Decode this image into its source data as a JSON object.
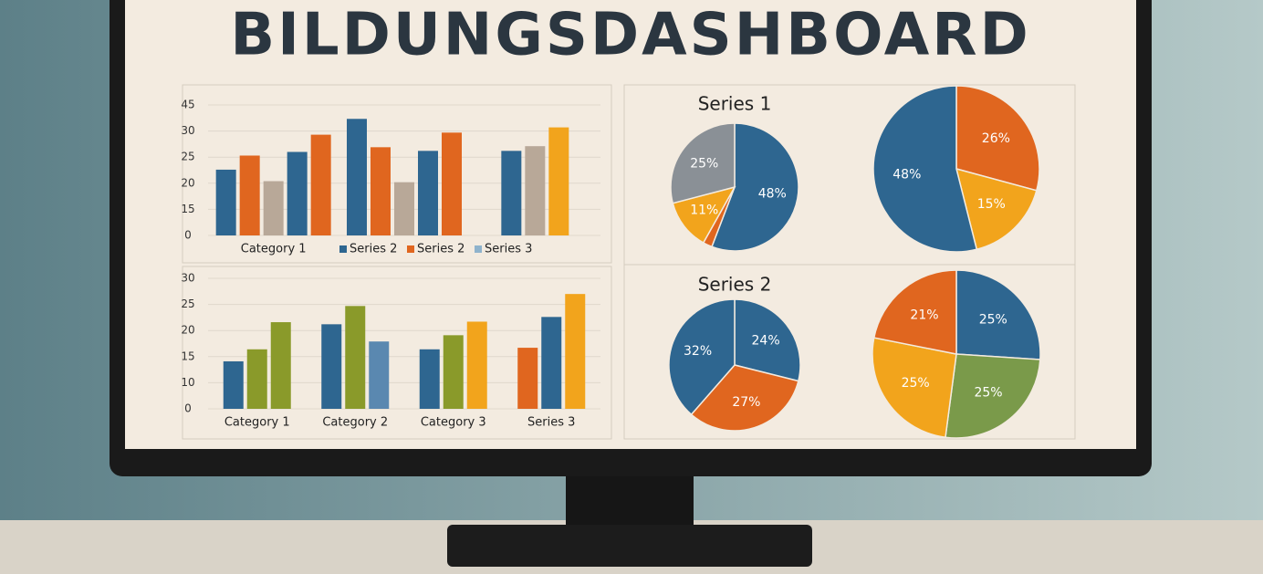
{
  "title": "BILDUNGSDASHBOARD",
  "chart_data": [
    {
      "type": "bar",
      "categories": [
        "Category 1",
        null,
        null
      ],
      "ylim": [
        0,
        45
      ],
      "yticks": [
        0,
        15,
        20,
        25,
        30,
        45
      ],
      "grid": true,
      "series": [
        {
          "name": "Series 2",
          "color": "#2e6690",
          "values": [
            22.6,
            37,
            26.2
          ]
        },
        {
          "name": "Series 2",
          "color": "#e0661f",
          "values": [
            25.3,
            26.9,
            null
          ]
        },
        {
          "color": "#b8a898",
          "values": [
            20.4,
            20.2,
            27.1
          ]
        },
        {
          "color": "#2e6690",
          "values": [
            26,
            26.2,
            null
          ]
        },
        {
          "color": "#e0661f",
          "colors": [
            "#e0661f",
            "#e0661f",
            "#f2a41c"
          ],
          "values": [
            29.3,
            29.7,
            32.1
          ]
        },
        {
          "name": "Series 3",
          "color": "#8fb3cc",
          "values": [
            null,
            null,
            null
          ]
        }
      ]
    },
    {
      "type": "bar",
      "categories": [
        "Category 1",
        "Category 2",
        "Category 3",
        "Series 3"
      ],
      "ylim": [
        0,
        30
      ],
      "yticks": [
        0,
        10,
        15,
        20,
        25,
        30
      ],
      "grid": true,
      "series": [
        {
          "colors": [
            "#2e6690",
            "#2e6690",
            "#2e6690",
            "#e0661f"
          ],
          "values": [
            14.1,
            21.2,
            16.4,
            16.7
          ]
        },
        {
          "colors": [
            "#8a9a2a",
            "#8a9a2a",
            "#8a9a2a",
            "#2e6690"
          ],
          "values": [
            16.4,
            24.7,
            19.1,
            22.6
          ]
        },
        {
          "colors": [
            "#8a9a2a",
            "#5a88b0",
            "#f2a41c",
            "#f2a41c"
          ],
          "values": [
            21.6,
            17.9,
            21.7,
            27.0
          ]
        }
      ]
    },
    {
      "type": "pie",
      "title": "Series 1",
      "values": [
        48,
        2,
        11,
        25
      ],
      "value_labels": [
        "48%",
        null,
        "11%",
        "25%"
      ],
      "colors": [
        "#2e6690",
        "#e0661f",
        "#f2a41c",
        "#8a9096"
      ]
    },
    {
      "type": "pie",
      "values": [
        26,
        15,
        48
      ],
      "value_labels": [
        "26%",
        "15%",
        "48%"
      ],
      "colors": [
        "#e0661f",
        "#f2a41c",
        "#2e6690"
      ]
    },
    {
      "type": "pie",
      "title": "Series 2",
      "values": [
        24,
        27,
        32
      ],
      "value_labels": [
        "24%",
        "27%",
        "32%"
      ],
      "colors": [
        "#2e6690",
        "#e0661f",
        "#2e6690"
      ]
    },
    {
      "type": "pie",
      "values": [
        25,
        25,
        25,
        21
      ],
      "value_labels": [
        "25%",
        "25%",
        "25%",
        "21%"
      ],
      "colors": [
        "#2e6690",
        "#7a9a4a",
        "#f2a41c",
        "#e0661f"
      ]
    }
  ]
}
